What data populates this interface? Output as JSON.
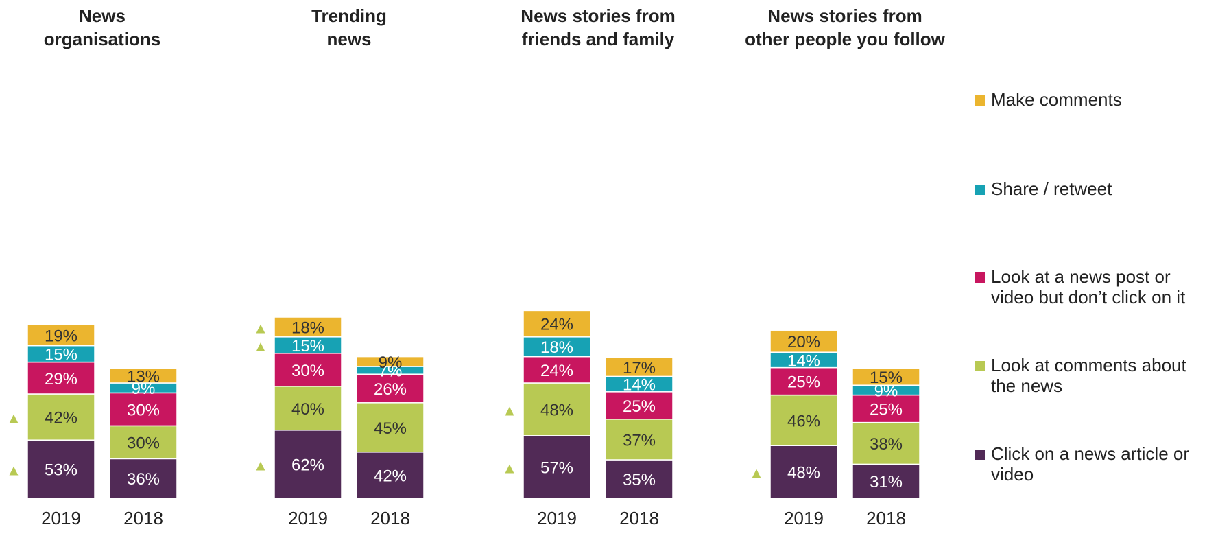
{
  "chart_data": {
    "type": "bar",
    "stacked": true,
    "units": "%",
    "categories": [
      "2019",
      "2018"
    ],
    "panels": [
      {
        "title_lines": [
          "News",
          "organisations"
        ],
        "bars": [
          {
            "year": "2019",
            "values": [
              53,
              42,
              29,
              15,
              19
            ],
            "increase_markers": [
              true,
              true,
              false,
              false,
              false
            ]
          },
          {
            "year": "2018",
            "values": [
              36,
              30,
              30,
              9,
              13
            ],
            "increase_markers": [
              false,
              false,
              false,
              false,
              false
            ]
          }
        ]
      },
      {
        "title_lines": [
          "Trending",
          "news"
        ],
        "bars": [
          {
            "year": "2019",
            "values": [
              62,
              40,
              30,
              15,
              18
            ],
            "increase_markers": [
              true,
              false,
              false,
              true,
              true
            ]
          },
          {
            "year": "2018",
            "values": [
              42,
              45,
              26,
              7,
              9
            ],
            "increase_markers": [
              false,
              false,
              false,
              false,
              false
            ]
          }
        ]
      },
      {
        "title_lines": [
          "News stories from",
          "friends and family"
        ],
        "bars": [
          {
            "year": "2019",
            "values": [
              57,
              48,
              24,
              18,
              24
            ],
            "increase_markers": [
              true,
              true,
              false,
              false,
              false
            ]
          },
          {
            "year": "2018",
            "values": [
              35,
              37,
              25,
              14,
              17
            ],
            "increase_markers": [
              false,
              false,
              false,
              false,
              false
            ]
          }
        ]
      },
      {
        "title_lines": [
          "News stories from",
          "other people you follow"
        ],
        "bars": [
          {
            "year": "2019",
            "values": [
              48,
              46,
              25,
              14,
              20
            ],
            "increase_markers": [
              true,
              false,
              false,
              false,
              false
            ]
          },
          {
            "year": "2018",
            "values": [
              31,
              38,
              25,
              9,
              15
            ],
            "increase_markers": [
              false,
              false,
              false,
              false,
              false
            ]
          }
        ]
      }
    ],
    "series": [
      {
        "name": "Click on a news article or video",
        "legend_lines": [
          "Click on a news article or",
          "video"
        ],
        "color": "#512a56",
        "label_color": "#ffffff"
      },
      {
        "name": "Look at comments about the news",
        "legend_lines": [
          "Look at comments about",
          "the news"
        ],
        "color": "#b8c953",
        "label_color": "#333333"
      },
      {
        "name": "Look at a news post or video but don’t click on it",
        "legend_lines": [
          "Look at a news post or",
          "video but don’t click on it"
        ],
        "color": "#c8165f",
        "label_color": "#ffffff"
      },
      {
        "name": "Share / retweet",
        "legend_lines": [
          "Share / retweet"
        ],
        "color": "#17a2b4",
        "label_color": "#ffffff"
      },
      {
        "name": "Make comments",
        "legend_lines": [
          "Make comments"
        ],
        "color": "#ebb52f",
        "label_color": "#333333"
      }
    ],
    "legend_position": "right",
    "marker_symbol": "▲",
    "marker_color": "#b8c953",
    "grid": false
  }
}
